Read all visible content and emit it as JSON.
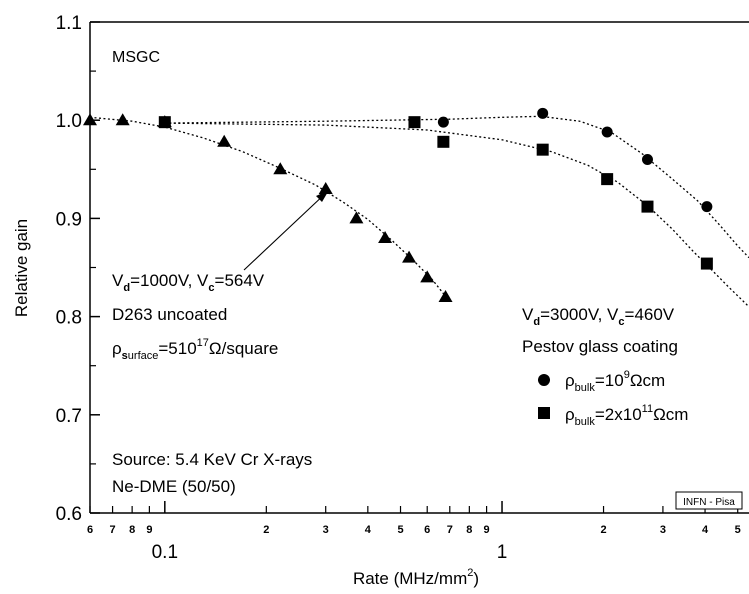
{
  "chart_data": {
    "type": "scatter",
    "xscale": "log",
    "xlim": [
      0.06,
      5.4
    ],
    "ylim": [
      0.6,
      1.1
    ],
    "xlabel": "Rate (MHz/mm",
    "xlabel_sup": "2",
    "xlabel_tail": ")",
    "ylabel": "Relative gain",
    "x_major_ticks": [
      {
        "value": 0.1,
        "label": "0.1"
      },
      {
        "value": 1,
        "label": "1"
      }
    ],
    "x_minor_ticks": [
      {
        "value": 0.06,
        "label": "6"
      },
      {
        "value": 0.07,
        "label": "7"
      },
      {
        "value": 0.08,
        "label": "8"
      },
      {
        "value": 0.09,
        "label": "9"
      },
      {
        "value": 0.2,
        "label": "2"
      },
      {
        "value": 0.3,
        "label": "3"
      },
      {
        "value": 0.4,
        "label": "4"
      },
      {
        "value": 0.5,
        "label": "5"
      },
      {
        "value": 0.6,
        "label": "6"
      },
      {
        "value": 0.7,
        "label": "7"
      },
      {
        "value": 0.8,
        "label": "8"
      },
      {
        "value": 0.9,
        "label": "9"
      },
      {
        "value": 2,
        "label": "2"
      },
      {
        "value": 3,
        "label": "3"
      },
      {
        "value": 4,
        "label": "4"
      },
      {
        "value": 5,
        "label": "5"
      }
    ],
    "y_ticks": [
      {
        "value": 0.6,
        "label": "0.6"
      },
      {
        "value": 0.7,
        "label": "0.7"
      },
      {
        "value": 0.8,
        "label": "0.8"
      },
      {
        "value": 0.9,
        "label": "0.9"
      },
      {
        "value": 1.0,
        "label": "1.0"
      },
      {
        "value": 1.1,
        "label": "1.1"
      }
    ],
    "series": [
      {
        "marker": "triangle",
        "color": "#000000",
        "points": [
          [
            0.06,
            1.0
          ],
          [
            0.075,
            1.0
          ],
          [
            0.1,
            0.998
          ],
          [
            0.15,
            0.978
          ],
          [
            0.22,
            0.95
          ],
          [
            0.3,
            0.93
          ],
          [
            0.37,
            0.9
          ],
          [
            0.45,
            0.88
          ],
          [
            0.53,
            0.86
          ],
          [
            0.6,
            0.84
          ],
          [
            0.68,
            0.82
          ]
        ],
        "fit": [
          [
            0.06,
            1.003
          ],
          [
            0.08,
            0.999
          ],
          [
            0.1,
            0.993
          ],
          [
            0.13,
            0.982
          ],
          [
            0.17,
            0.968
          ],
          [
            0.22,
            0.951
          ],
          [
            0.28,
            0.934
          ],
          [
            0.34,
            0.916
          ],
          [
            0.4,
            0.899
          ],
          [
            0.47,
            0.878
          ],
          [
            0.55,
            0.856
          ],
          [
            0.62,
            0.838
          ],
          [
            0.69,
            0.818
          ]
        ]
      },
      {
        "marker": "circle",
        "color": "#000000",
        "points": [
          [
            0.1,
            0.998
          ],
          [
            0.67,
            0.998
          ],
          [
            1.32,
            1.007
          ],
          [
            2.05,
            0.988
          ],
          [
            2.7,
            0.96
          ],
          [
            4.05,
            0.912
          ]
        ],
        "fit": [
          [
            0.1,
            0.997
          ],
          [
            0.3,
            0.999
          ],
          [
            0.7,
            1.001
          ],
          [
            1.0,
            1.003
          ],
          [
            1.3,
            1.004
          ],
          [
            1.7,
            0.999
          ],
          [
            2.1,
            0.988
          ],
          [
            2.6,
            0.966
          ],
          [
            3.2,
            0.94
          ],
          [
            3.8,
            0.918
          ],
          [
            4.4,
            0.894
          ],
          [
            5.0,
            0.872
          ],
          [
            5.4,
            0.86
          ]
        ]
      },
      {
        "marker": "square",
        "color": "#000000",
        "points": [
          [
            0.1,
            0.998
          ],
          [
            0.55,
            0.998
          ],
          [
            0.67,
            0.978
          ],
          [
            1.32,
            0.97
          ],
          [
            2.05,
            0.94
          ],
          [
            2.7,
            0.912
          ],
          [
            4.05,
            0.854
          ]
        ],
        "fit": [
          [
            0.1,
            0.997
          ],
          [
            0.3,
            0.995
          ],
          [
            0.6,
            0.99
          ],
          [
            1.0,
            0.98
          ],
          [
            1.4,
            0.968
          ],
          [
            1.8,
            0.954
          ],
          [
            2.2,
            0.937
          ],
          [
            2.7,
            0.913
          ],
          [
            3.2,
            0.889
          ],
          [
            3.7,
            0.866
          ],
          [
            4.2,
            0.847
          ],
          [
            4.7,
            0.83
          ],
          [
            5.4,
            0.81
          ]
        ]
      }
    ]
  },
  "annotations": {
    "msgc": "MSGC",
    "uncoated": {
      "v": "V",
      "d_sub": "d",
      "vd_val": "=1000V, V",
      "c_sub": "c",
      "vc_val": "=564V",
      "line2": "D263 uncoated",
      "rho": "ρ",
      "surface_sub_bold": "s",
      "surface_sub_rest": "urface",
      "rho_val": "=510",
      "rho_exp": "17",
      "rho_unit": "Ω/square"
    },
    "pestov": {
      "v": "V",
      "d_sub": "d",
      "vd_val": "=3000V, V",
      "c_sub": "c",
      "vc_val": "=460V",
      "line2": "Pestov glass coating",
      "rho": "ρ",
      "bulk_sub": "bulk",
      "circle_val": "=10",
      "circle_exp": "9",
      "circle_unit": "Ωcm",
      "square_val": "=2x10",
      "square_exp": "11",
      "square_unit": "Ωcm"
    },
    "source_line1": "Source: 5.4 KeV Cr X-rays",
    "source_line2": "Ne-DME (50/50)",
    "badge": "INFN - Pisa"
  }
}
